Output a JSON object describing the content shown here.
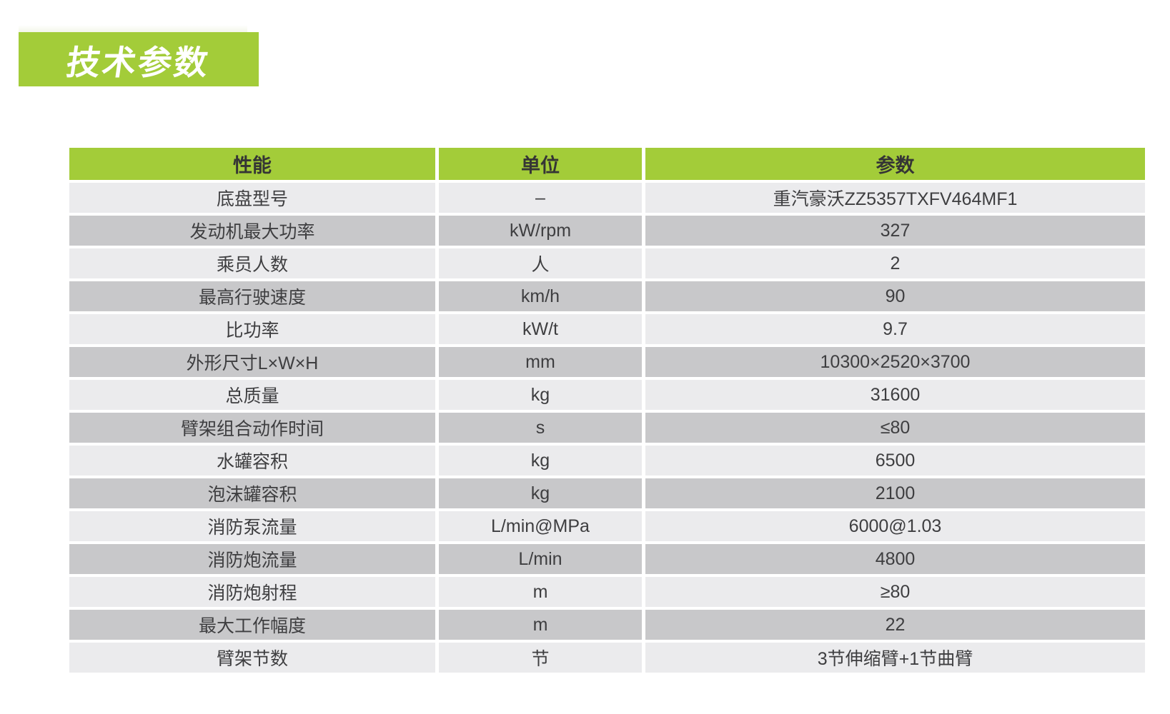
{
  "section_title": "技术参数",
  "colors": {
    "accent_green": "#a3cc39",
    "row_light": "#ebebed",
    "row_dark": "#c8c8ca",
    "cell_text": "#3e3e40",
    "title_text": "#ffffff"
  },
  "table": {
    "headers": {
      "performance": "性能",
      "unit": "单位",
      "parameter": "参数"
    },
    "rows": [
      {
        "name": "底盘型号",
        "unit": "–",
        "value": "重汽豪沃ZZ5357TXFV464MF1"
      },
      {
        "name": "发动机最大功率",
        "unit": "kW/rpm",
        "value": "327"
      },
      {
        "name": "乘员人数",
        "unit": "人",
        "value": "2"
      },
      {
        "name": "最高行驶速度",
        "unit": "km/h",
        "value": "90"
      },
      {
        "name": "比功率",
        "unit": "kW/t",
        "value": "9.7"
      },
      {
        "name": "外形尺寸L×W×H",
        "unit": "mm",
        "value": "10300×2520×3700"
      },
      {
        "name": "总质量",
        "unit": "kg",
        "value": "31600"
      },
      {
        "name": "臂架组合动作时间",
        "unit": "s",
        "value": "≤80"
      },
      {
        "name": "水罐容积",
        "unit": "kg",
        "value": "6500"
      },
      {
        "name": "泡沫罐容积",
        "unit": "kg",
        "value": "2100"
      },
      {
        "name": "消防泵流量",
        "unit": "L/min@MPa",
        "value": "6000@1.03"
      },
      {
        "name": "消防炮流量",
        "unit": "L/min",
        "value": "4800"
      },
      {
        "name": "消防炮射程",
        "unit": "m",
        "value": "≥80"
      },
      {
        "name": "最大工作幅度",
        "unit": "m",
        "value": "22"
      },
      {
        "name": "臂架节数",
        "unit": "节",
        "value": "3节伸缩臂+1节曲臂"
      }
    ]
  }
}
